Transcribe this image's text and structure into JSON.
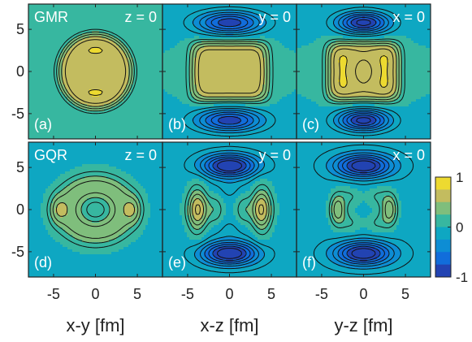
{
  "chart_data": {
    "type": "heatmap",
    "colormap": "parula",
    "colorbar": {
      "min": -1,
      "max": 1,
      "ticks": [
        "1",
        "0",
        "-1"
      ],
      "placement": "right of bottom row"
    },
    "axis_range_fm": [
      -8,
      8
    ],
    "x_ticks": [
      "-5",
      "0",
      "5"
    ],
    "y_ticks": [
      "5",
      "0",
      "-5"
    ],
    "x_labels": [
      "x-y [fm]",
      "x-z [fm]",
      "y-z [fm]"
    ],
    "row_labels": [
      "GMR",
      "GQR"
    ],
    "panels": [
      {
        "id": "a",
        "tag": "(a)",
        "plane": "z = 0",
        "row": 0,
        "col": 0,
        "mode": "GMR",
        "projection": "xy"
      },
      {
        "id": "b",
        "tag": "(b)",
        "plane": "y = 0",
        "row": 0,
        "col": 1,
        "mode": "GMR",
        "projection": "xz"
      },
      {
        "id": "c",
        "tag": "(c)",
        "plane": "x = 0",
        "row": 0,
        "col": 2,
        "mode": "GMR",
        "projection": "yz"
      },
      {
        "id": "d",
        "tag": "(d)",
        "plane": "z = 0",
        "row": 1,
        "col": 0,
        "mode": "GQR",
        "projection": "xy"
      },
      {
        "id": "e",
        "tag": "(e)",
        "plane": "y = 0",
        "row": 1,
        "col": 1,
        "mode": "GQR",
        "projection": "xz"
      },
      {
        "id": "f",
        "tag": "(f)",
        "plane": "x = 0",
        "row": 1,
        "col": 2,
        "mode": "GQR",
        "projection": "yz"
      }
    ],
    "grid": false,
    "contour_levels": [
      -0.875,
      -0.75,
      -0.625,
      -0.5,
      -0.375,
      -0.25,
      -0.125,
      0.125,
      0.25,
      0.375,
      0.5,
      0.625,
      0.75,
      0.875
    ]
  }
}
